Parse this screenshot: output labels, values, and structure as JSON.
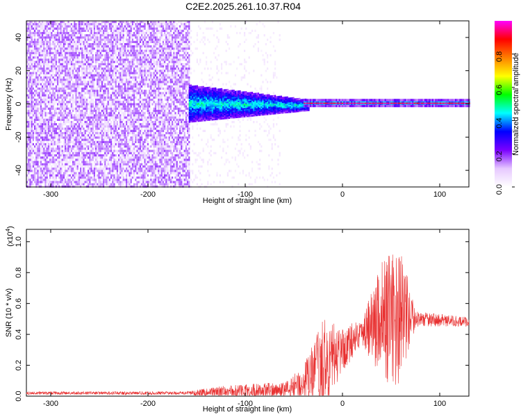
{
  "title": "C2E2.2025.261.10.37.R04",
  "chart_data": [
    {
      "type": "heatmap",
      "xlabel": "Height of straight line (km)",
      "ylabel": "Frequency (Hz)",
      "xlim": [
        -325,
        130
      ],
      "ylim": [
        -50,
        50
      ],
      "x_ticks": [
        -300,
        -200,
        -100,
        0,
        100
      ],
      "y_ticks": [
        -40,
        -20,
        0,
        20,
        40
      ],
      "colorbar": {
        "label": "Normalized spectral amplitude",
        "range": [
          0,
          1
        ],
        "ticks": [
          "0.0",
          "0.2",
          "0.4",
          "0.6",
          "0.8"
        ],
        "tick_values": [
          0,
          0.2,
          0.4,
          0.6,
          0.8
        ],
        "colors": [
          "#ffffff",
          "#e6c8ff",
          "#7a00ff",
          "#0000ff",
          "#00ffff",
          "#00ff00",
          "#ffff00",
          "#ff8000",
          "#ff0000",
          "#ff00ff"
        ]
      },
      "regions": [
        {
          "x_range": [
            -325,
            -158
          ],
          "freq_range": [
            -50,
            50
          ],
          "amplitude": "low-noise-dense"
        },
        {
          "x_range": [
            -158,
            -75
          ],
          "freq_range": [
            -50,
            50
          ],
          "amplitude": "sparse-noise"
        },
        {
          "x_range": [
            -158,
            -40
          ],
          "freq_range": [
            -10,
            12
          ],
          "amplitude": "0.2-0.4"
        },
        {
          "x_range": [
            -40,
            130
          ],
          "freq_range": [
            -2,
            3
          ],
          "amplitude": "0.8-1.0"
        }
      ]
    },
    {
      "type": "line",
      "xlabel": "Height of straight line (km)",
      "ylabel": "SNR (10 * v/v)",
      "y_multiplier": "(x10",
      "y_multiplier_exp": "4",
      "y_multiplier_close": ")",
      "xlim": [
        -325,
        130
      ],
      "ylim": [
        0,
        1.08
      ],
      "x_ticks": [
        -300,
        -200,
        -100,
        0,
        100
      ],
      "y_ticks": [
        "0.0",
        "0.2",
        "0.4",
        "0.6",
        "0.8",
        "1.0"
      ],
      "y_tick_values": [
        0,
        0.2,
        0.4,
        0.6,
        0.8,
        1.0
      ],
      "line_color": "#e83030",
      "envelope": [
        {
          "x": -325,
          "base": 0.02,
          "amp": 0.01
        },
        {
          "x": -160,
          "base": 0.02,
          "amp": 0.01
        },
        {
          "x": -140,
          "base": 0.025,
          "amp": 0.03
        },
        {
          "x": -100,
          "base": 0.03,
          "amp": 0.05
        },
        {
          "x": -60,
          "base": 0.04,
          "amp": 0.05
        },
        {
          "x": -40,
          "base": 0.08,
          "amp": 0.12
        },
        {
          "x": -20,
          "base": 0.2,
          "amp": 0.3
        },
        {
          "x": 0,
          "base": 0.3,
          "amp": 0.15
        },
        {
          "x": 20,
          "base": 0.42,
          "amp": 0.08
        },
        {
          "x": 40,
          "base": 0.5,
          "amp": 0.4
        },
        {
          "x": 60,
          "base": 0.5,
          "amp": 0.45
        },
        {
          "x": 75,
          "base": 0.5,
          "amp": 0.05
        },
        {
          "x": 130,
          "base": 0.48,
          "amp": 0.03
        }
      ]
    }
  ]
}
